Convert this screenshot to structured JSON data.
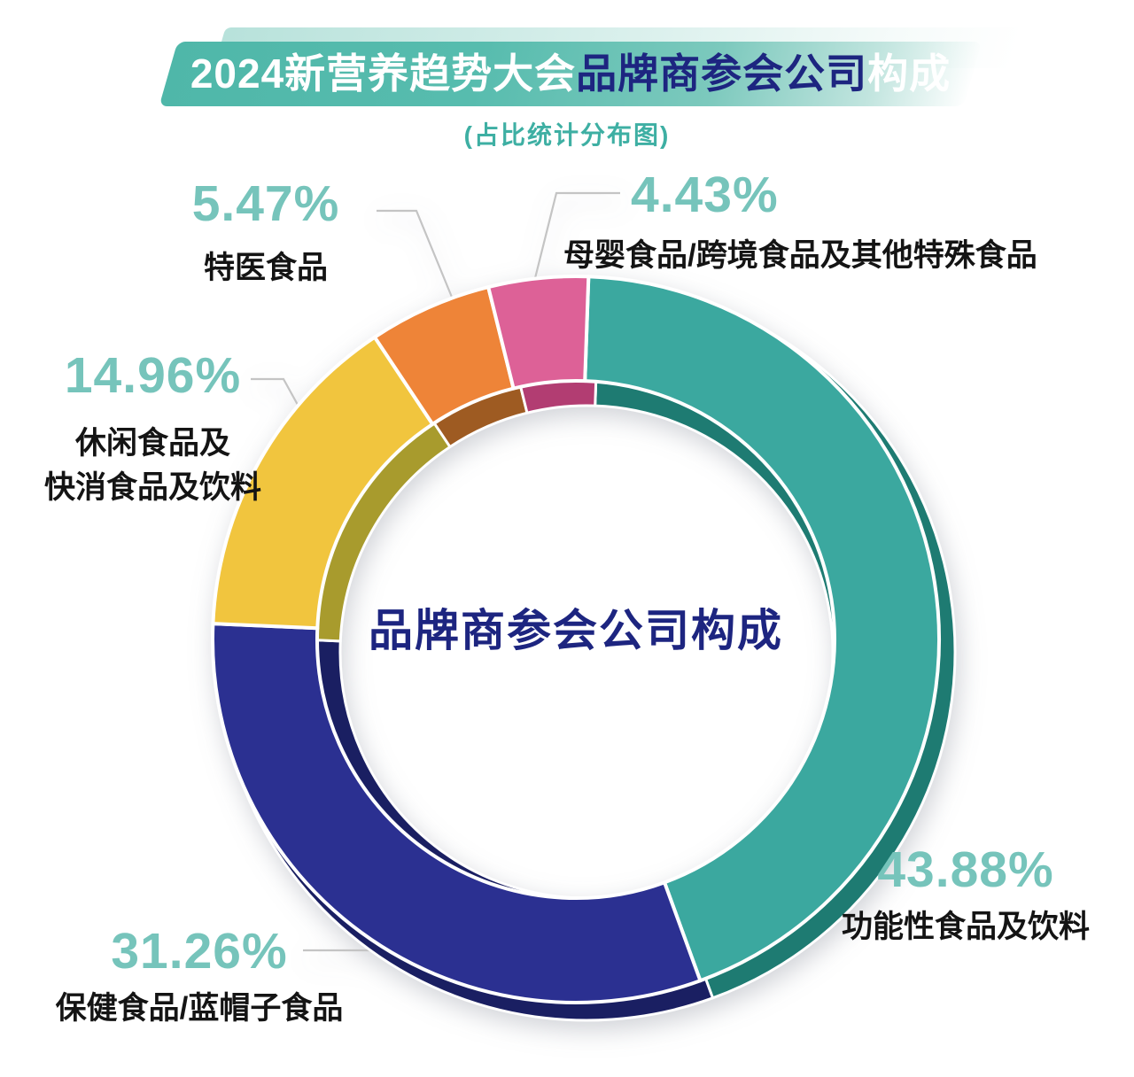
{
  "banner": {
    "title_part1": "2024新营养趋势大会",
    "title_part2": "品牌商参会公司",
    "title_part3": "构成",
    "subtitle": "(占比统计分布图)"
  },
  "center_label": "品牌商参会公司构成",
  "colors": {
    "banner_teal": "#4FB7A9",
    "navy_accent": "#1D2580",
    "pct_teal": "#76C4BB",
    "leader_gray": "#C4C4C4"
  },
  "chart_data": {
    "type": "pie",
    "donut": true,
    "title": "2024新营养趋势大会品牌商参会公司构成",
    "subtitle": "(占比统计分布图)",
    "center_label": "品牌商参会公司构成",
    "start_angle_deg": 2,
    "direction": "clockwise",
    "legend_position": "callouts",
    "slices": [
      {
        "label": "功能性食品及饮料",
        "value": 43.88,
        "display": "43.88%",
        "color": "#3BA89F",
        "shade_color": "#1E7B72"
      },
      {
        "label": "保健食品/蓝帽子食品",
        "value": 31.26,
        "display": "31.26%",
        "color": "#2B3091",
        "shade_color": "#1A1F62"
      },
      {
        "label": "休闲食品及快消食品及饮料",
        "value": 14.96,
        "display": "14.96%",
        "color": "#F1C53E",
        "shade_color": "#A89B2D"
      },
      {
        "label": "特医食品",
        "value": 5.47,
        "display": "5.47%",
        "color": "#EE8438",
        "shade_color": "#9E5B22"
      },
      {
        "label": "母婴食品/跨境食品及其他特殊食品",
        "value": 4.43,
        "display": "4.43%",
        "color": "#DD6197",
        "shade_color": "#B23D72"
      }
    ]
  },
  "callouts": {
    "gongneng": {
      "pct": "43.88%",
      "line1": "功能性食品及饮料"
    },
    "baojian": {
      "pct": "31.26%",
      "line1": "保健食品/蓝帽子食品"
    },
    "xiuxian": {
      "pct": "14.96%",
      "line1": "休闲食品及",
      "line2": "快消食品及饮料"
    },
    "teyi": {
      "pct": "5.47%",
      "line1": "特医食品"
    },
    "muying": {
      "pct": "4.43%",
      "line1": "母婴食品/跨境食品及其他特殊食品"
    }
  }
}
